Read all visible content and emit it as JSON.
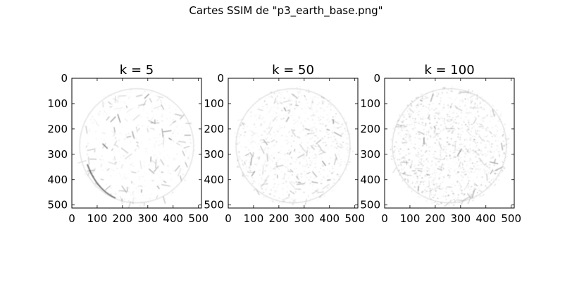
{
  "figure": {
    "suptitle": "Cartes SSIM de \"p3_earth_base.png\""
  },
  "chart_data": [
    {
      "type": "heatmap",
      "title": "k = 5",
      "xlim": [
        0,
        512
      ],
      "ylim": [
        512,
        0
      ],
      "xticks": [
        0,
        100,
        200,
        300,
        400,
        500
      ],
      "yticks": [
        0,
        100,
        200,
        300,
        400,
        500
      ],
      "colormap": "gray",
      "detail_density": 0.18
    },
    {
      "type": "heatmap",
      "title": "k = 50",
      "xlim": [
        0,
        512
      ],
      "ylim": [
        512,
        0
      ],
      "xticks": [
        0,
        100,
        200,
        300,
        400,
        500
      ],
      "yticks": [
        0,
        100,
        200,
        300,
        400,
        500
      ],
      "colormap": "gray",
      "detail_density": 0.45
    },
    {
      "type": "heatmap",
      "title": "k = 100",
      "xlim": [
        0,
        512
      ],
      "ylim": [
        512,
        0
      ],
      "xticks": [
        0,
        100,
        200,
        300,
        400,
        500
      ],
      "yticks": [
        0,
        100,
        200,
        300,
        400,
        500
      ],
      "colormap": "gray",
      "detail_density": 0.7
    }
  ]
}
